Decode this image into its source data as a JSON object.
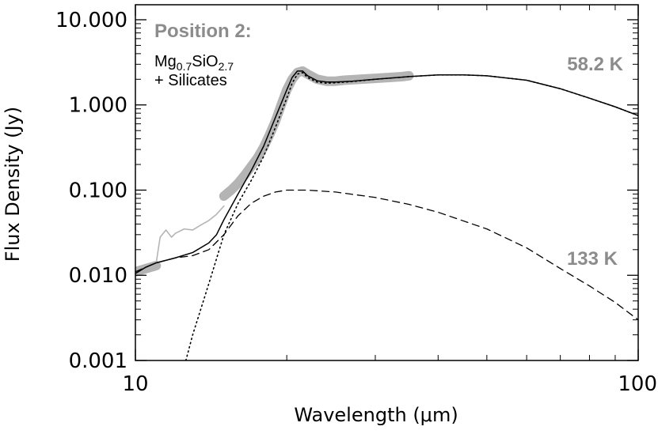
{
  "chart_data": {
    "type": "line",
    "title": "",
    "xlabel": "Wavelength (μm)",
    "ylabel": "Flux Density (Jy)",
    "xscale": "log",
    "yscale": "log",
    "xlim": [
      10,
      100
    ],
    "ylim": [
      0.001,
      15
    ],
    "x_ticks": [
      10,
      100
    ],
    "x_tick_labels": [
      "10",
      "100"
    ],
    "y_ticks": [
      0.001,
      0.01,
      0.1,
      1,
      10
    ],
    "y_tick_labels": [
      "0.001",
      "0.010",
      "0.100",
      "1.000",
      "10.000"
    ],
    "annotations": {
      "position_title": "Position 2:",
      "composition_main": "Mg",
      "composition_sub1": "0.7",
      "composition_mid": "SiO",
      "composition_sub2": "2.7",
      "silicates": "+ Silicates",
      "temp_cold": "58.2 K",
      "temp_warm": "133 K"
    },
    "series": [
      {
        "name": "observed-spectrum-band",
        "style": "thick-gray-band",
        "color": "#b4b4b4",
        "x": [
          10.0,
          10.5,
          11.0
        ],
        "y": [
          0.011,
          0.012,
          0.013
        ]
      },
      {
        "name": "observed-spectrum-band-2",
        "style": "thick-gray-band",
        "color": "#b4b4b4",
        "x": [
          15.0,
          15.5,
          16.0,
          16.5,
          17.0,
          17.5,
          18.0,
          18.5,
          19.0,
          19.5,
          20.0,
          20.5,
          21.0,
          21.5,
          22.0,
          23.0,
          24.0,
          25.0,
          26.0,
          28.0,
          30.0,
          32.0,
          34.0,
          35.0
        ],
        "y": [
          0.085,
          0.1,
          0.12,
          0.15,
          0.19,
          0.24,
          0.32,
          0.45,
          0.65,
          1.0,
          1.5,
          2.0,
          2.4,
          2.5,
          2.3,
          2.0,
          1.9,
          1.9,
          1.95,
          2.0,
          2.05,
          2.1,
          2.15,
          2.2
        ]
      },
      {
        "name": "observed-spectrum-thin",
        "style": "thin-gray",
        "color": "#b4b4b4",
        "x": [
          10.0,
          10.5,
          11.0,
          11.2,
          11.5,
          11.8,
          12.0,
          12.5,
          13.0,
          13.5,
          14.0,
          14.5,
          15.0
        ],
        "y": [
          0.011,
          0.0125,
          0.014,
          0.028,
          0.034,
          0.028,
          0.031,
          0.035,
          0.034,
          0.039,
          0.044,
          0.052,
          0.065
        ]
      },
      {
        "name": "total-model",
        "style": "solid",
        "color": "#000000",
        "x": [
          10.0,
          10.5,
          11.0,
          12.0,
          13.0,
          14.0,
          14.5,
          15.0,
          16.0,
          17.0,
          18.0,
          19.0,
          20.0,
          20.5,
          21.0,
          21.5,
          22.0,
          23.0,
          24.0,
          25.0,
          27.0,
          30.0,
          35.0,
          40.0,
          45.0,
          50.0,
          60.0,
          70.0,
          80.0,
          90.0,
          100.0
        ],
        "y": [
          0.0105,
          0.0125,
          0.014,
          0.016,
          0.0185,
          0.024,
          0.03,
          0.045,
          0.09,
          0.17,
          0.33,
          0.72,
          1.5,
          2.1,
          2.5,
          2.5,
          2.2,
          1.92,
          1.86,
          1.86,
          1.9,
          2.0,
          2.15,
          2.25,
          2.25,
          2.2,
          1.95,
          1.55,
          1.2,
          0.95,
          0.75
        ]
      },
      {
        "name": "warm-component-133K",
        "style": "dashed",
        "color": "#000000",
        "x": [
          10.0,
          11.0,
          12.0,
          13.0,
          14.0,
          15.0,
          16.0,
          17.0,
          18.0,
          19.0,
          20.0,
          22.0,
          25.0,
          30.0,
          35.0,
          40.0,
          50.0,
          60.0,
          70.0,
          80.0,
          90.0,
          100.0
        ],
        "y": [
          0.011,
          0.014,
          0.016,
          0.017,
          0.02,
          0.03,
          0.05,
          0.07,
          0.085,
          0.095,
          0.1,
          0.1,
          0.095,
          0.082,
          0.068,
          0.055,
          0.035,
          0.021,
          0.012,
          0.0075,
          0.0048,
          0.003
        ]
      },
      {
        "name": "cold-component-58.2K",
        "style": "dotted",
        "color": "#000000",
        "x": [
          12.6,
          13.0,
          14.0,
          15.0,
          16.0,
          17.0,
          18.0,
          19.0,
          20.0,
          20.5,
          21.0,
          21.5,
          22.0,
          23.0,
          24.0,
          25.0,
          27.0,
          30.0,
          35.0,
          40.0,
          45.0,
          50.0,
          60.0,
          70.0,
          80.0,
          90.0,
          100.0
        ],
        "y": [
          0.001,
          0.002,
          0.008,
          0.03,
          0.07,
          0.13,
          0.25,
          0.55,
          1.2,
          1.8,
          2.3,
          2.4,
          2.1,
          1.85,
          1.8,
          1.82,
          1.88,
          2.0,
          2.15,
          2.25,
          2.25,
          2.2,
          1.95,
          1.55,
          1.2,
          0.95,
          0.75
        ]
      }
    ]
  }
}
